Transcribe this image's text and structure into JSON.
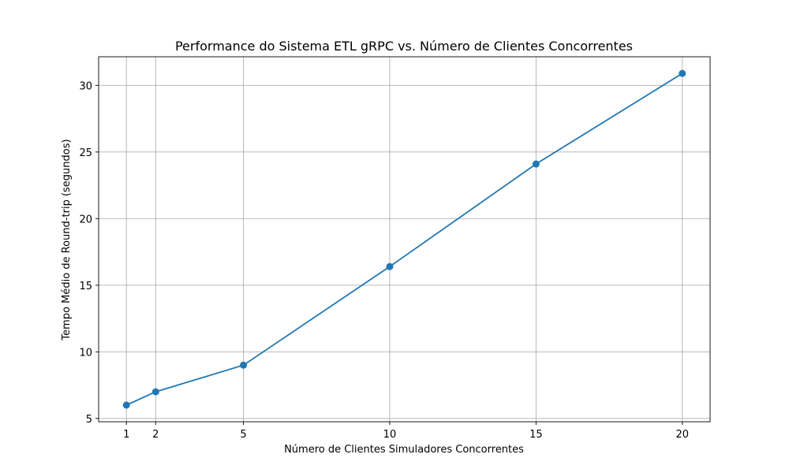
{
  "chart_data": {
    "type": "line",
    "title": "Performance do Sistema ETL gRPC vs. Número de Clientes Concorrentes",
    "xlabel": "Número de Clientes Simuladores Concorrentes",
    "ylabel": "Tempo Médio de Round-trip (segundos)",
    "x": [
      1,
      2,
      5,
      10,
      15,
      20
    ],
    "series": [
      {
        "values": [
          6.0,
          7.0,
          9.0,
          16.4,
          24.1,
          30.9
        ],
        "color": "#1f77b4",
        "marker": "circle"
      }
    ],
    "xticks": [
      1,
      2,
      5,
      10,
      15,
      20
    ],
    "yticks": [
      5,
      10,
      15,
      20,
      25,
      30
    ],
    "xlim": [
      0.05,
      20.95
    ],
    "ylim": [
      4.75,
      32.15
    ],
    "grid": true
  }
}
